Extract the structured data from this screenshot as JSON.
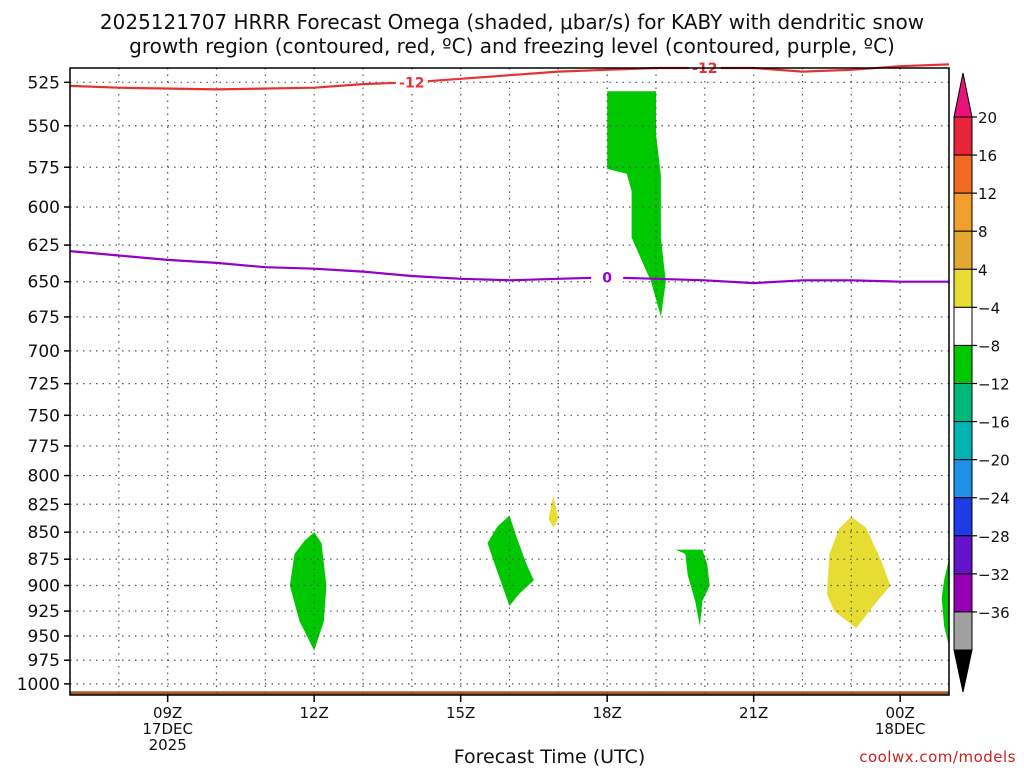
{
  "title_line1": "2025121707 HRRR Forecast Omega (shaded, μbar/s) for KABY with dendritic snow",
  "title_line2": "growth region (contoured, red, ºC) and freezing level (contoured, purple, ºC)",
  "credit": "coolwx.com/models",
  "chart_data": {
    "type": "contour-time-height",
    "xlabel": "Forecast Time (UTC)",
    "x_ticks": [
      {
        "hour": 9,
        "label": "09Z",
        "sub1": "17DEC",
        "sub2": "2025"
      },
      {
        "hour": 12,
        "label": "12Z",
        "sub1": "",
        "sub2": ""
      },
      {
        "hour": 15,
        "label": "15Z",
        "sub1": "",
        "sub2": ""
      },
      {
        "hour": 18,
        "label": "18Z",
        "sub1": "",
        "sub2": ""
      },
      {
        "hour": 21,
        "label": "21Z",
        "sub1": "",
        "sub2": ""
      },
      {
        "hour": 24,
        "label": "00Z",
        "sub1": "18DEC",
        "sub2": ""
      }
    ],
    "xlim_hours": [
      7,
      25
    ],
    "ylabel": "",
    "y_ticks": [
      525,
      550,
      575,
      600,
      625,
      650,
      675,
      700,
      725,
      750,
      775,
      800,
      825,
      850,
      875,
      900,
      925,
      950,
      975,
      1000
    ],
    "ylim_hpa": [
      517,
      1012
    ],
    "grid": true,
    "colorbar": {
      "levels": [
        "20",
        "16",
        "12",
        "8",
        "4",
        "−4",
        "−8",
        "−12",
        "−16",
        "−20",
        "−24",
        "−28",
        "−32",
        "−36"
      ],
      "colors": [
        "#e8243a",
        "#f26b22",
        "#f0a02a",
        "#e2a830",
        "#e6dc32",
        "#ffffff",
        "#00c800",
        "#00b87a",
        "#00b4b4",
        "#1e90e6",
        "#1e3ce6",
        "#6414c8",
        "#9600b4",
        "#a0a0a0"
      ],
      "top_arrow_color": "#e8127a",
      "bottom_arrow_color": "#000000"
    },
    "freezing_level": {
      "label": "0",
      "color": "#9400c8",
      "points": [
        [
          7,
          629
        ],
        [
          8,
          632
        ],
        [
          9,
          635
        ],
        [
          10,
          637
        ],
        [
          11,
          640
        ],
        [
          12,
          641
        ],
        [
          13,
          643
        ],
        [
          14,
          646
        ],
        [
          15,
          648
        ],
        [
          16,
          649
        ],
        [
          17,
          648
        ],
        [
          18,
          647
        ],
        [
          19,
          648
        ],
        [
          20,
          649
        ],
        [
          21,
          651
        ],
        [
          22,
          649
        ],
        [
          23,
          649
        ],
        [
          24,
          650
        ],
        [
          25,
          650
        ]
      ]
    },
    "dgz_top": {
      "label": "-12",
      "color": "#e83232",
      "points": [
        [
          7,
          527
        ],
        [
          8,
          528
        ],
        [
          10,
          529
        ],
        [
          12,
          528
        ],
        [
          13,
          526
        ],
        [
          14,
          525
        ],
        [
          15,
          523
        ],
        [
          16,
          521
        ],
        [
          17,
          519
        ],
        [
          18,
          518
        ],
        [
          19,
          517
        ],
        [
          20,
          517
        ],
        [
          21,
          517
        ],
        [
          22,
          519
        ],
        [
          23,
          518
        ],
        [
          24,
          516
        ],
        [
          25,
          515
        ]
      ]
    },
    "omega_regions": [
      {
        "level": "-8",
        "color": "#00c800",
        "points": [
          [
            18.0,
            530
          ],
          [
            19.0,
            530
          ],
          [
            19.0,
            555
          ],
          [
            19.1,
            580
          ],
          [
            19.1,
            620
          ],
          [
            19.2,
            650
          ],
          [
            19.1,
            675
          ],
          [
            18.9,
            650
          ],
          [
            18.5,
            620
          ],
          [
            18.5,
            590
          ],
          [
            18.4,
            579
          ],
          [
            18.0,
            576
          ]
        ]
      },
      {
        "level": "-8",
        "color": "#00c800",
        "points": [
          [
            12.0,
            850
          ],
          [
            12.15,
            860
          ],
          [
            12.25,
            900
          ],
          [
            12.2,
            935
          ],
          [
            12.0,
            965
          ],
          [
            11.7,
            935
          ],
          [
            11.5,
            900
          ],
          [
            11.6,
            870
          ],
          [
            11.8,
            858
          ]
        ]
      },
      {
        "level": "-8",
        "color": "#00c800",
        "points": [
          [
            16.0,
            835
          ],
          [
            16.15,
            855
          ],
          [
            16.35,
            880
          ],
          [
            16.5,
            895
          ],
          [
            16.2,
            908
          ],
          [
            16.0,
            920
          ],
          [
            15.7,
            880
          ],
          [
            15.55,
            860
          ],
          [
            15.75,
            845
          ]
        ]
      },
      {
        "level": "-8",
        "color": "#00c800",
        "points": [
          [
            19.4,
            866
          ],
          [
            19.95,
            866
          ],
          [
            20.05,
            880
          ],
          [
            20.1,
            900
          ],
          [
            19.95,
            915
          ],
          [
            19.9,
            940
          ],
          [
            19.8,
            915
          ],
          [
            19.65,
            890
          ],
          [
            19.6,
            870
          ]
        ]
      },
      {
        "level": "-8",
        "color": "#00c800",
        "points": [
          [
            25.0,
            875
          ],
          [
            25.0,
            960
          ],
          [
            24.9,
            940
          ],
          [
            24.85,
            912
          ],
          [
            24.9,
            895
          ]
        ]
      },
      {
        "level": "4",
        "color": "#e6dc32",
        "points": [
          [
            16.9,
            817
          ],
          [
            17.0,
            838
          ],
          [
            16.9,
            846
          ],
          [
            16.8,
            838
          ]
        ]
      },
      {
        "level": "4",
        "color": "#e6dc32",
        "points": [
          [
            23.0,
            836
          ],
          [
            23.3,
            846
          ],
          [
            23.6,
            875
          ],
          [
            23.8,
            900
          ],
          [
            23.45,
            920
          ],
          [
            23.1,
            942
          ],
          [
            22.65,
            925
          ],
          [
            22.5,
            908
          ],
          [
            22.55,
            870
          ],
          [
            22.75,
            847
          ]
        ]
      }
    ],
    "terrain": {
      "color": "#a05a2c",
      "top_hpa": 1008
    }
  }
}
